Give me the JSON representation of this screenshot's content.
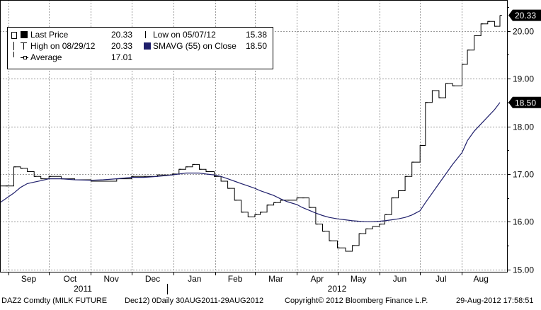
{
  "legend": {
    "last_price_label": "Last Price",
    "last_price_value": "20.33",
    "high_label": "High on 08/29/12",
    "high_value": "20.33",
    "average_label": "Average",
    "average_value": "17.01",
    "low_label": "Low on 05/07/12",
    "low_value": "15.38",
    "smavg_label": "SMAVG (55) on Close",
    "smavg_value": "18.50"
  },
  "footer": {
    "ticker": "DAZ2 Comdty (MILK FUTURE",
    "contract": "Dec12) 0Daily 30AUG2011-29AUG2012",
    "copyright": "Copyright© 2012 Bloomberg Finance L.P.",
    "timestamp": "29-Aug-2012 17:58:51"
  },
  "colors": {
    "price": "#000000",
    "smavg": "#1f1f6b",
    "grid": "#9a9a9a",
    "tag_bg": "#000000",
    "tag_text": "#ffffff"
  },
  "chart_data": {
    "type": "line",
    "title": "",
    "xlabel": "",
    "ylabel": "",
    "ylim": [
      14.95,
      20.65
    ],
    "y_ticks": [
      "15.00",
      "16.00",
      "17.00",
      "18.00",
      "19.00",
      "20.00"
    ],
    "x_tick_labels": [
      "Sep",
      "Oct",
      "Nov",
      "Dec",
      "Jan",
      "Feb",
      "Mar",
      "Apr",
      "May",
      "Jun",
      "Jul",
      "Aug"
    ],
    "year_labels": [
      "2011",
      "2012"
    ],
    "x": [
      "2011-08-30",
      "2011-09-05",
      "2011-09-10",
      "2011-09-15",
      "2011-09-20",
      "2011-09-25",
      "2011-10-01",
      "2011-10-10",
      "2011-10-20",
      "2011-11-01",
      "2011-11-10",
      "2011-11-20",
      "2011-12-01",
      "2011-12-10",
      "2011-12-20",
      "2011-12-31",
      "2012-01-05",
      "2012-01-10",
      "2012-01-15",
      "2012-01-20",
      "2012-01-25",
      "2012-01-31",
      "2012-02-05",
      "2012-02-10",
      "2012-02-15",
      "2012-02-20",
      "2012-02-25",
      "2012-03-01",
      "2012-03-05",
      "2012-03-10",
      "2012-03-15",
      "2012-03-20",
      "2012-03-25",
      "2012-04-01",
      "2012-04-05",
      "2012-04-10",
      "2012-04-15",
      "2012-04-20",
      "2012-04-25",
      "2012-05-01",
      "2012-05-07",
      "2012-05-12",
      "2012-05-17",
      "2012-05-22",
      "2012-05-27",
      "2012-06-01",
      "2012-06-05",
      "2012-06-10",
      "2012-06-15",
      "2012-06-20",
      "2012-06-25",
      "2012-07-01",
      "2012-07-05",
      "2012-07-10",
      "2012-07-15",
      "2012-07-20",
      "2012-07-25",
      "2012-08-01",
      "2012-08-05",
      "2012-08-10",
      "2012-08-15",
      "2012-08-20",
      "2012-08-25",
      "2012-08-29"
    ],
    "series": [
      {
        "name": "Last Price",
        "values": [
          16.75,
          17.15,
          17.12,
          17.05,
          16.95,
          16.9,
          16.95,
          16.9,
          16.88,
          16.85,
          16.85,
          16.9,
          16.95,
          16.95,
          16.98,
          17.0,
          17.1,
          17.15,
          17.2,
          17.1,
          17.05,
          16.95,
          16.85,
          16.7,
          16.45,
          16.2,
          16.1,
          16.15,
          16.2,
          16.35,
          16.4,
          16.45,
          16.45,
          16.5,
          16.5,
          16.3,
          15.95,
          15.8,
          15.6,
          15.45,
          15.38,
          15.5,
          15.75,
          15.85,
          15.9,
          15.95,
          16.15,
          16.5,
          16.65,
          16.95,
          17.25,
          17.6,
          18.5,
          18.75,
          18.6,
          18.9,
          18.85,
          19.3,
          19.6,
          19.9,
          20.15,
          20.2,
          20.1,
          20.33
        ]
      },
      {
        "name": "SMAVG (55) on Close",
        "values": [
          16.4,
          16.6,
          16.72,
          16.8,
          16.83,
          16.86,
          16.9,
          16.9,
          16.88,
          16.87,
          16.88,
          16.9,
          16.93,
          16.93,
          16.95,
          16.98,
          17.0,
          17.02,
          17.02,
          17.02,
          17.0,
          16.98,
          16.95,
          16.9,
          16.85,
          16.8,
          16.75,
          16.7,
          16.65,
          16.6,
          16.55,
          16.48,
          16.42,
          16.36,
          16.3,
          16.24,
          16.18,
          16.13,
          16.09,
          16.06,
          16.04,
          16.02,
          16.01,
          16.0,
          16.0,
          16.01,
          16.02,
          16.04,
          16.06,
          16.09,
          16.14,
          16.23,
          16.4,
          16.6,
          16.8,
          17.0,
          17.2,
          17.45,
          17.7,
          17.9,
          18.05,
          18.2,
          18.35,
          18.5
        ]
      }
    ],
    "last_value_tags": [
      "20.33",
      "18.50"
    ],
    "grid": true,
    "legend_position": "top-left"
  }
}
